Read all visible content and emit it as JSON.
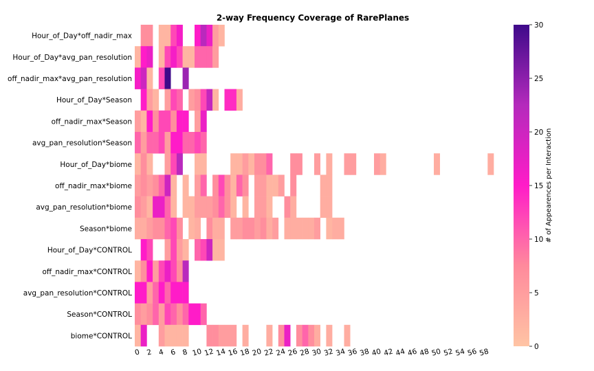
{
  "chart_data": {
    "type": "heatmap",
    "title": "2-way Frequency Coverage of RarePlanes",
    "colorbar": {
      "label": "# of Appearences per Interaction",
      "min": 0,
      "max": 30,
      "ticks": [
        0,
        5,
        10,
        15,
        20,
        25,
        30
      ],
      "colors": [
        "#ffc4a4",
        "#ff8a9c",
        "#ff1cc8",
        "#b42abc",
        "#3e0a8a"
      ]
    },
    "x_ticks": [
      0,
      2,
      4,
      6,
      8,
      10,
      12,
      14,
      16,
      18,
      20,
      22,
      24,
      26,
      28,
      30,
      32,
      34,
      36,
      38,
      40,
      42,
      44,
      46,
      48,
      50,
      52,
      54,
      56,
      58
    ],
    "x_count": 60,
    "rows": [
      {
        "label": "Hour_of_Day*off_nadir_max",
        "values": [
          null,
          7,
          7,
          null,
          2,
          2,
          12,
          16,
          null,
          null,
          15,
          22,
          17,
          5,
          2,
          null,
          null,
          null,
          null,
          null,
          null,
          null,
          null,
          null,
          null,
          null,
          null,
          null,
          null,
          null,
          null,
          null,
          null,
          null,
          null,
          null,
          null,
          null,
          null,
          null,
          null,
          null,
          null,
          null,
          null,
          null,
          null,
          null,
          null,
          null,
          null,
          null,
          null,
          null,
          null,
          null,
          null,
          null,
          null,
          null
        ]
      },
      {
        "label": "Hour_of_Day*avg_pan_resolution",
        "values": [
          2,
          15,
          17,
          null,
          2,
          12,
          16,
          12,
          2,
          2,
          10,
          10,
          10,
          5,
          null,
          null,
          null,
          null,
          null,
          null,
          null,
          null,
          null,
          null,
          null,
          null,
          null,
          null,
          null,
          null,
          null,
          null,
          null,
          null,
          null,
          null,
          null,
          null,
          null,
          null,
          null,
          null,
          null,
          null,
          null,
          null,
          null,
          null,
          null,
          null,
          null,
          null,
          null,
          null,
          null,
          null,
          null,
          null,
          null,
          null
        ]
      },
      {
        "label": "off_nadir_max*avg_pan_resolution",
        "values": [
          16,
          20,
          2,
          null,
          12,
          30,
          null,
          null,
          24,
          null,
          null,
          null,
          null,
          null,
          null,
          null,
          null,
          null,
          null,
          null,
          null,
          null,
          null,
          null,
          null,
          null,
          null,
          null,
          null,
          null,
          null,
          null,
          null,
          null,
          null,
          null,
          null,
          null,
          null,
          null,
          null,
          null,
          null,
          null,
          null,
          null,
          null,
          null,
          null,
          null,
          null,
          null,
          null,
          null,
          null,
          null,
          null,
          null,
          null,
          null
        ]
      },
      {
        "label": "Hour_of_Day*Season",
        "values": [
          null,
          15,
          5,
          2,
          null,
          5,
          12,
          10,
          null,
          5,
          7,
          12,
          21,
          2,
          null,
          14,
          14,
          3,
          null,
          null,
          null,
          null,
          null,
          null,
          null,
          null,
          null,
          null,
          null,
          null,
          null,
          null,
          null,
          null,
          null,
          null,
          null,
          null,
          null,
          null,
          null,
          null,
          null,
          null,
          null,
          null,
          null,
          null,
          null,
          null,
          null,
          null,
          null,
          null,
          null,
          null,
          null,
          null,
          null,
          null
        ]
      },
      {
        "label": "off_nadir_max*Season",
        "values": [
          5,
          2,
          15,
          7,
          12,
          12,
          7,
          15,
          15,
          null,
          5,
          17,
          null,
          null,
          null,
          null,
          null,
          null,
          null,
          null,
          null,
          null,
          null,
          null,
          null,
          null,
          null,
          null,
          null,
          null,
          null,
          null,
          null,
          null,
          null,
          null,
          null,
          null,
          null,
          null,
          null,
          null,
          null,
          null,
          null,
          null,
          null,
          null,
          null,
          null,
          null,
          null,
          null,
          null,
          null,
          null,
          null,
          null,
          null,
          null
        ]
      },
      {
        "label": "avg_pan_resolution*Season",
        "values": [
          10,
          5,
          10,
          10,
          12,
          5,
          15,
          15,
          10,
          10,
          12,
          10,
          null,
          null,
          null,
          null,
          null,
          null,
          null,
          null,
          null,
          null,
          null,
          null,
          null,
          null,
          null,
          null,
          null,
          null,
          null,
          null,
          null,
          null,
          null,
          null,
          null,
          null,
          null,
          null,
          null,
          null,
          null,
          null,
          null,
          null,
          null,
          null,
          null,
          null,
          null,
          null,
          null,
          null,
          null,
          null,
          null,
          null,
          null,
          null
        ]
      },
      {
        "label": "Hour_of_Day*biome",
        "values": [
          2,
          7,
          2,
          null,
          null,
          5,
          12,
          22,
          null,
          null,
          2,
          2,
          null,
          null,
          null,
          null,
          2,
          2,
          5,
          2,
          7,
          7,
          10,
          null,
          null,
          null,
          7,
          7,
          null,
          null,
          5,
          null,
          3,
          null,
          null,
          5,
          5,
          null,
          null,
          null,
          5,
          3,
          null,
          null,
          null,
          null,
          null,
          null,
          null,
          null,
          3,
          null,
          null,
          null,
          null,
          null,
          null,
          null,
          null,
          3
        ]
      },
      {
        "label": "off_nadir_max*biome",
        "values": [
          5,
          7,
          5,
          7,
          10,
          20,
          2,
          null,
          2,
          null,
          5,
          10,
          null,
          7,
          12,
          7,
          2,
          10,
          7,
          null,
          5,
          5,
          2,
          2,
          5,
          null,
          7,
          null,
          null,
          null,
          null,
          3,
          3,
          null,
          null,
          null,
          null,
          null,
          null,
          null,
          null,
          null,
          null,
          null,
          null,
          null,
          null,
          null,
          null,
          null,
          null,
          null,
          null,
          null,
          null,
          null,
          null,
          null,
          null,
          null
        ]
      },
      {
        "label": "avg_pan_resolution*biome",
        "values": [
          7,
          5,
          2,
          17,
          17,
          10,
          2,
          null,
          2,
          2,
          5,
          5,
          5,
          7,
          10,
          7,
          2,
          null,
          2,
          null,
          5,
          5,
          2,
          null,
          null,
          7,
          3,
          null,
          null,
          null,
          null,
          3,
          3,
          null,
          null,
          null,
          null,
          null,
          null,
          null,
          null,
          null,
          null,
          null,
          null,
          null,
          null,
          null,
          null,
          null,
          null,
          null,
          null,
          null,
          null,
          null,
          null,
          null,
          null,
          null
        ]
      },
      {
        "label": "Season*biome",
        "values": [
          3,
          3,
          5,
          7,
          7,
          10,
          12,
          7,
          null,
          2,
          3,
          null,
          7,
          3,
          3,
          null,
          5,
          5,
          7,
          7,
          5,
          7,
          3,
          5,
          null,
          3,
          3,
          3,
          3,
          3,
          5,
          null,
          2,
          3,
          3,
          null,
          null,
          null,
          null,
          null,
          null,
          null,
          null,
          null,
          null,
          null,
          null,
          null,
          null,
          null,
          null,
          null,
          null,
          null,
          null,
          null,
          null,
          null,
          null,
          null
        ]
      },
      {
        "label": "Hour_of_Day*CONTROL",
        "values": [
          null,
          15,
          12,
          null,
          null,
          5,
          12,
          5,
          2,
          null,
          10,
          12,
          20,
          2,
          2,
          null,
          null,
          null,
          null,
          null,
          null,
          null,
          null,
          null,
          null,
          null,
          null,
          null,
          null,
          null,
          null,
          null,
          null,
          null,
          null,
          null,
          null,
          null,
          null,
          null,
          null,
          null,
          null,
          null,
          null,
          null,
          null,
          null,
          null,
          null,
          null,
          null,
          null,
          null,
          null,
          null,
          null,
          null,
          null,
          null
        ]
      },
      {
        "label": "off_nadir_max*CONTROL",
        "values": [
          2,
          7,
          15,
          5,
          12,
          17,
          12,
          7,
          22,
          null,
          null,
          null,
          null,
          null,
          null,
          null,
          null,
          null,
          null,
          null,
          null,
          null,
          null,
          null,
          null,
          null,
          null,
          null,
          null,
          null,
          null,
          null,
          null,
          null,
          null,
          null,
          null,
          null,
          null,
          null,
          null,
          null,
          null,
          null,
          null,
          null,
          null,
          null,
          null,
          null,
          null,
          null,
          null,
          null,
          null,
          null,
          null,
          null,
          null,
          null
        ]
      },
      {
        "label": "avg_pan_resolution*CONTROL",
        "values": [
          15,
          15,
          5,
          10,
          15,
          10,
          15,
          15,
          15,
          null,
          null,
          null,
          null,
          null,
          null,
          null,
          null,
          null,
          null,
          null,
          null,
          null,
          null,
          null,
          null,
          null,
          null,
          null,
          null,
          null,
          null,
          null,
          null,
          null,
          null,
          null,
          null,
          null,
          null,
          null,
          null,
          null,
          null,
          null,
          null,
          null,
          null,
          null,
          null,
          null,
          null,
          null,
          null,
          null,
          null,
          null,
          null,
          null,
          null,
          null
        ]
      },
      {
        "label": "Season*CONTROL",
        "values": [
          7,
          5,
          7,
          10,
          5,
          12,
          10,
          7,
          10,
          15,
          15,
          10,
          null,
          null,
          null,
          null,
          null,
          null,
          null,
          null,
          null,
          null,
          null,
          null,
          null,
          null,
          null,
          null,
          null,
          null,
          null,
          null,
          null,
          null,
          null,
          null,
          null,
          null,
          null,
          null,
          null,
          null,
          null,
          null,
          null,
          null,
          null,
          null,
          null,
          null,
          null,
          null,
          null,
          null,
          null,
          null,
          null,
          null,
          null,
          null
        ]
      },
      {
        "label": "biome*CONTROL",
        "values": [
          2,
          17,
          null,
          null,
          5,
          2,
          2,
          2,
          2,
          null,
          null,
          null,
          7,
          7,
          5,
          5,
          5,
          null,
          3,
          null,
          null,
          null,
          3,
          null,
          7,
          17,
          null,
          7,
          10,
          7,
          3,
          null,
          3,
          null,
          null,
          3,
          null,
          null,
          null,
          null,
          null,
          null,
          null,
          null,
          null,
          null,
          null,
          null,
          null,
          null,
          null,
          null,
          null,
          null,
          null,
          null,
          null,
          null,
          null,
          null
        ]
      }
    ]
  }
}
